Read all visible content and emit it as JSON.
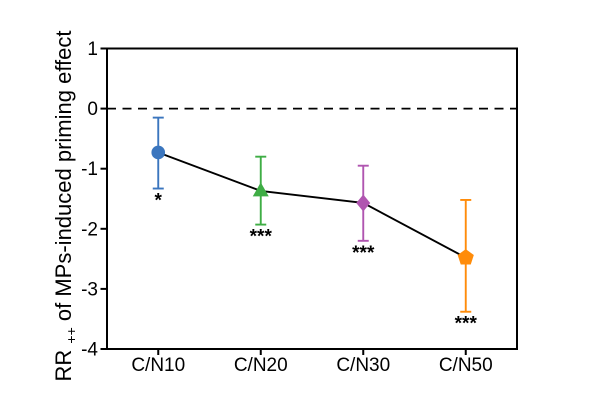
{
  "chart_data": {
    "type": "line",
    "title": "",
    "xlabel": "",
    "ylabel": "RR++ of MPs-induced priming effect",
    "ylabel_parts": {
      "prefix": "RR",
      "sub": "++",
      "rest": " of MPs-induced priming effect"
    },
    "categories": [
      "C/N10",
      "C/N20",
      "C/N30",
      "C/N50"
    ],
    "yticks": [
      1,
      0,
      -1,
      -2,
      -3,
      -4
    ],
    "ylim": [
      -4,
      1
    ],
    "zero_line": {
      "value": 0,
      "style": "dashed",
      "color": "#000000"
    },
    "grid": "off",
    "legend": "none",
    "axis_color": "#000000",
    "line_color": "#000000",
    "series": [
      {
        "name": "MPs-induced priming effect",
        "points": [
          {
            "category": "C/N10",
            "mean": -0.73,
            "ci_upper": -0.15,
            "ci_lower": -1.33,
            "significance": "*",
            "marker": "circle",
            "color": "#3B76BE"
          },
          {
            "category": "C/N20",
            "mean": -1.37,
            "ci_upper": -0.8,
            "ci_lower": -1.93,
            "significance": "***",
            "marker": "triangle",
            "color": "#3FAD45"
          },
          {
            "category": "C/N30",
            "mean": -1.57,
            "ci_upper": -0.95,
            "ci_lower": -2.2,
            "significance": "***",
            "marker": "diamond",
            "color": "#B055B0"
          },
          {
            "category": "C/N50",
            "mean": -2.48,
            "ci_upper": -1.52,
            "ci_lower": -3.38,
            "significance": "***",
            "marker": "pentagon",
            "color": "#FF8C0A"
          }
        ]
      }
    ]
  }
}
